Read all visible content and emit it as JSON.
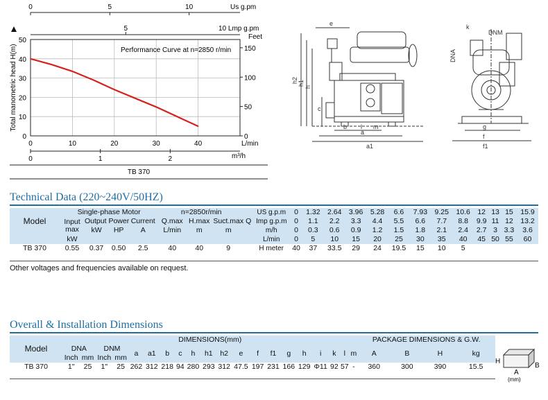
{
  "curve": {
    "top_axis1": {
      "label": "Us  g.pm",
      "ticks": [
        "0",
        "5",
        "10"
      ]
    },
    "top_axis2": {
      "label": "10  Lmp  g.pm",
      "ticks": [
        "5"
      ]
    },
    "y_left": {
      "label": "Total manometric head H(m)",
      "ticks": [
        "0",
        "10",
        "20",
        "30",
        "40",
        "50"
      ]
    },
    "y_right": {
      "label": "Feet",
      "ticks": [
        "0",
        "50",
        "100",
        "150"
      ]
    },
    "x_bottom1": {
      "label": "L/min",
      "ticks": [
        "0",
        "10",
        "20",
        "30",
        "40"
      ]
    },
    "x_bottom2": {
      "label": "m³/h",
      "ticks": [
        "0",
        "1",
        "2"
      ]
    },
    "annotation": "Performance Curve at n=2850 r/min",
    "caption": "TB 370"
  },
  "chart_data": {
    "type": "line",
    "title": "Performance Curve at n=2850 r/min",
    "xlabel": "L/min",
    "ylabel": "Total manometric head H(m)",
    "xlim": [
      0,
      50
    ],
    "ylim": [
      0,
      50
    ],
    "series": [
      {
        "name": "TB 370",
        "x": [
          0,
          5,
          10,
          15,
          20,
          25,
          30,
          35,
          40
        ],
        "y": [
          40,
          37,
          33.5,
          29,
          24,
          19.5,
          15,
          10,
          5
        ]
      }
    ]
  },
  "drawing": {
    "side_labels": [
      "e",
      "h2",
      "h1",
      "h",
      "c",
      "b",
      "l",
      "m",
      "a",
      "a1"
    ],
    "front_labels": [
      "k",
      "DNM",
      "DNA",
      "g",
      "f",
      "f1"
    ]
  },
  "tech": {
    "title": "Technical Data (220~240V/50HZ)",
    "model_label": "Model",
    "motor_label": "Single-phase Motor",
    "input_label": [
      "Input",
      "max"
    ],
    "output_label": "Output Power",
    "current_label": "Current",
    "speed_label": "n=2850r/min",
    "qmax_label": "Q.max",
    "hmax_label": "H.max",
    "suct_label": "Suct.max",
    "q_label": "Q",
    "units": [
      "kW",
      "kW",
      "HP",
      "A",
      "L/min",
      "m",
      "m"
    ],
    "flow_rows": [
      {
        "label": "US g.p.m",
        "values": [
          "0",
          "1.32",
          "2.64",
          "3.96",
          "5.28",
          "6.6",
          "7.93",
          "9.25",
          "10.6",
          "12",
          "13",
          "15",
          "15.9"
        ]
      },
      {
        "label": "Imp g.p.m",
        "values": [
          "0",
          "1.1",
          "2.2",
          "3.3",
          "4.4",
          "5.5",
          "6.6",
          "7.7",
          "8.8",
          "9.9",
          "11",
          "12",
          "13.2"
        ]
      },
      {
        "label": "m/h",
        "values": [
          "0",
          "0.3",
          "0.6",
          "0.9",
          "1.2",
          "1.5",
          "1.8",
          "2.1",
          "2.4",
          "2.7",
          "3",
          "3.3",
          "3.6"
        ]
      },
      {
        "label": "L/min",
        "values": [
          "0",
          "5",
          "10",
          "15",
          "20",
          "25",
          "30",
          "35",
          "40",
          "45",
          "50",
          "55",
          "60"
        ]
      }
    ],
    "row": {
      "model": "TB 370",
      "input": "0.55",
      "kw": "0.37",
      "hp": "0.50",
      "amp": "2.5",
      "qmax": "40",
      "hmax": "40",
      "suct": "9",
      "h_label": "H meter",
      "h_values": [
        "40",
        "37",
        "33.5",
        "29",
        "24",
        "19.5",
        "15",
        "10",
        "5",
        "",
        "",
        "",
        ""
      ]
    },
    "note": "Other voltages and frequencies available on request."
  },
  "dims": {
    "title": "Overall & Installation Dimensions",
    "model_label": "Model",
    "dimensions_label": "DIMENSIONS(mm)",
    "package_label": "PACKAGE DIMENSIONS & G.W.",
    "dna_label": "DNA",
    "dnm_label": "DNM",
    "inch": "Inch",
    "mm": "mm",
    "cols": [
      "a",
      "a1",
      "b",
      "c",
      "h",
      "h1",
      "h2",
      "e",
      "f",
      "f1",
      "g",
      "h",
      "i",
      "k",
      "l",
      "m"
    ],
    "pkg_cols": [
      "A",
      "B",
      "H",
      "kg"
    ],
    "box_labels": {
      "h": "H",
      "b": "B",
      "a": "A",
      "unit": "(mm)"
    },
    "row": {
      "model": "TB 370",
      "dna_in": "1\"",
      "dna_mm": "25",
      "dnm_in": "1\"",
      "dnm_mm": "25",
      "values": [
        "262",
        "312",
        "218",
        "94",
        "280",
        "293",
        "312",
        "47.5",
        "197",
        "231",
        "166",
        "129",
        "Φ11",
        "92",
        "57",
        "-"
      ],
      "pkg": [
        "360",
        "300",
        "390",
        "15.5"
      ]
    }
  }
}
